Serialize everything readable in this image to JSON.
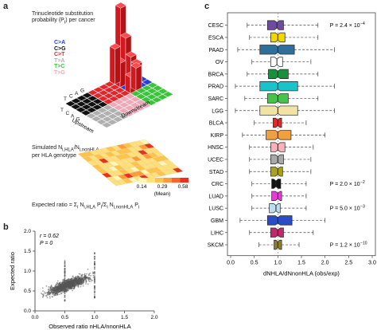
{
  "panel_a": {
    "letter": "a",
    "trinuc_label_1": "Trinucleotide substitution",
    "trinuc_label_2": "probability (P",
    "trinuc_label_2_sub": "i",
    "trinuc_label_2_end": ") per cancer",
    "legend": [
      {
        "label": "C>A",
        "color": "#2a3fd6"
      },
      {
        "label": "C>G",
        "color": "#111111"
      },
      {
        "label": "C>T",
        "color": "#e3262b"
      },
      {
        "label": "T>A",
        "color": "#b0b0b0"
      },
      {
        "label": "T>C",
        "color": "#39c43a"
      },
      {
        "label": "T>G",
        "color": "#f0a8b8"
      }
    ],
    "upstream_label": "Upstream",
    "downstream_label": "Downstream",
    "bases": [
      "T",
      "C",
      "A",
      "G"
    ],
    "simulated_label_1": "Simulated N",
    "simulated_sub_1": "i,HLA",
    "simulated_slash": "/N",
    "simulated_sub_2": "i,nonHLA",
    "simulated_label_2": "per HLA genotype",
    "colorbar_ticks": [
      "0.14",
      "0.29",
      "0.58"
    ],
    "colorbar_mean": "(Mean)",
    "expected_label": "Expected ratio = Σ",
    "expected_rest": " N",
    "expected_sub1": "i,HLA",
    "expected_mid": " P",
    "expected_sub2": "i",
    "expected_mid2": "/Σ",
    "expected_mid3": " N",
    "expected_sub3": "i,nonHLA",
    "expected_mid4": " P",
    "expected_sub4": "i"
  },
  "panel_b": {
    "letter": "b",
    "r_text": "r = 0.62",
    "p_text": "P = 0",
    "ylabel": "Expected ratio",
    "xlabel": "Observed ratio n",
    "xlabel_sub": "HLA",
    "xlabel_end": "/n",
    "xlabel_sub2": "nonHLA"
  },
  "panel_c": {
    "letter": "c",
    "xlabel": "dN",
    "xlabel_sub": "HLA",
    "xlabel_mid": "/dN",
    "xlabel_sub2": "nonHLA",
    "xlabel_end": " (obs/exp)",
    "annotations": [
      {
        "cancer": "CESC",
        "text": "P = 2.4 × 10"
      },
      {
        "cancer": "CRC",
        "text": "P = 2.0 × 10"
      },
      {
        "cancer": "LUSC",
        "text": "P = 5.0 × 10"
      },
      {
        "cancer": "SKCM",
        "text": "P = 1.2 × 10"
      }
    ],
    "annotation_exps": [
      "−4",
      "−2",
      "−3",
      "−10"
    ]
  },
  "chart_data": [
    {
      "type": "scatter",
      "panel": "b",
      "xlabel": "Observed ratio n_HLA/n_nonHLA",
      "ylabel": "Expected ratio",
      "xlim": [
        0,
        2.0
      ],
      "ylim": [
        0,
        2.0
      ],
      "x_ticks": [
        "0.0",
        "0.5",
        "1.0",
        "1.5",
        "2.0"
      ],
      "y_ticks": [
        "0.0",
        "0.5",
        "1.0",
        "1.5",
        "2.0"
      ],
      "color": "#555555"
    },
    {
      "type": "box",
      "panel": "c",
      "orientation": "horizontal",
      "xlabel": "dN_HLA/dN_nonHLA (obs/exp)",
      "xlim": [
        0,
        3.0
      ],
      "x_ticks": [
        "0.0",
        "0.5",
        "1.0",
        "1.5",
        "2.0",
        "2.5",
        "3.0"
      ],
      "reference_line": 1.0,
      "categories": [
        "CESC",
        "ESCA",
        "PAAD",
        "OV",
        "BRCA",
        "PRAD",
        "SARC",
        "LGG",
        "BLCA",
        "KIRP",
        "HNSC",
        "UCEC",
        "STAD",
        "CRC",
        "LUAD",
        "LUSC",
        "GBM",
        "LIHC",
        "SKCM"
      ],
      "boxes": [
        {
          "name": "CESC",
          "q1": 0.78,
          "median": 0.98,
          "q3": 1.12,
          "wlo": 0.35,
          "whi": 1.85,
          "color": "#6f4aa3"
        },
        {
          "name": "ESCA",
          "q1": 0.85,
          "median": 1.0,
          "q3": 1.15,
          "wlo": 0.4,
          "whi": 1.85,
          "color": "#f2d600"
        },
        {
          "name": "PAAD",
          "q1": 0.62,
          "median": 1.0,
          "q3": 1.35,
          "wlo": 0.15,
          "whi": 2.2,
          "color": "#2f6f99"
        },
        {
          "name": "OV",
          "q1": 0.85,
          "median": 0.98,
          "q3": 1.1,
          "wlo": 0.45,
          "whi": 1.7,
          "color": "#ffffff"
        },
        {
          "name": "BRCA",
          "q1": 0.8,
          "median": 1.0,
          "q3": 1.22,
          "wlo": 0.35,
          "whi": 1.85,
          "color": "#1a8f3f"
        },
        {
          "name": "PRAD",
          "q1": 0.62,
          "median": 1.0,
          "q3": 1.42,
          "wlo": 0.1,
          "whi": 2.2,
          "color": "#18c4c9"
        },
        {
          "name": "SARC",
          "q1": 0.78,
          "median": 1.0,
          "q3": 1.22,
          "wlo": 0.3,
          "whi": 1.85,
          "color": "#47c24a"
        },
        {
          "name": "LGG",
          "q1": 0.62,
          "median": 1.0,
          "q3": 1.42,
          "wlo": 0.1,
          "whi": 2.2,
          "color": "#f2e3a3"
        },
        {
          "name": "BLCA",
          "q1": 0.9,
          "median": 1.0,
          "q3": 1.08,
          "wlo": 0.5,
          "whi": 1.6,
          "color": "#e02a2a"
        },
        {
          "name": "KIRP",
          "q1": 0.75,
          "median": 1.0,
          "q3": 1.28,
          "wlo": 0.25,
          "whi": 2.0,
          "color": "#f0a040"
        },
        {
          "name": "HNSC",
          "q1": 0.85,
          "median": 1.0,
          "q3": 1.15,
          "wlo": 0.4,
          "whi": 1.75,
          "color": "#f7b3b8"
        },
        {
          "name": "UCEC",
          "q1": 0.85,
          "median": 1.0,
          "q3": 1.12,
          "wlo": 0.4,
          "whi": 1.7,
          "color": "#a8a8a8"
        },
        {
          "name": "STAD",
          "q1": 0.85,
          "median": 1.0,
          "q3": 1.1,
          "wlo": 0.4,
          "whi": 1.7,
          "color": "#a9a21a"
        },
        {
          "name": "CRC",
          "q1": 0.87,
          "median": 0.96,
          "q3": 1.06,
          "wlo": 0.45,
          "whi": 1.6,
          "color": "#111111"
        },
        {
          "name": "LUAD",
          "q1": 0.87,
          "median": 1.0,
          "q3": 1.08,
          "wlo": 0.45,
          "whi": 1.6,
          "color": "#e83bd8"
        },
        {
          "name": "LUSC",
          "q1": 0.82,
          "median": 0.96,
          "q3": 1.05,
          "wlo": 0.45,
          "whi": 1.6,
          "color": "#b8e0f0"
        },
        {
          "name": "GBM",
          "q1": 0.78,
          "median": 1.0,
          "q3": 1.3,
          "wlo": 0.2,
          "whi": 2.0,
          "color": "#2b4bc8"
        },
        {
          "name": "LIHC",
          "q1": 0.85,
          "median": 1.0,
          "q3": 1.12,
          "wlo": 0.4,
          "whi": 1.75,
          "color": "#c02a6a"
        },
        {
          "name": "SKCM",
          "q1": 0.92,
          "median": 1.0,
          "q3": 1.08,
          "wlo": 0.6,
          "whi": 1.45,
          "color": "#8f7e2a"
        }
      ]
    }
  ]
}
